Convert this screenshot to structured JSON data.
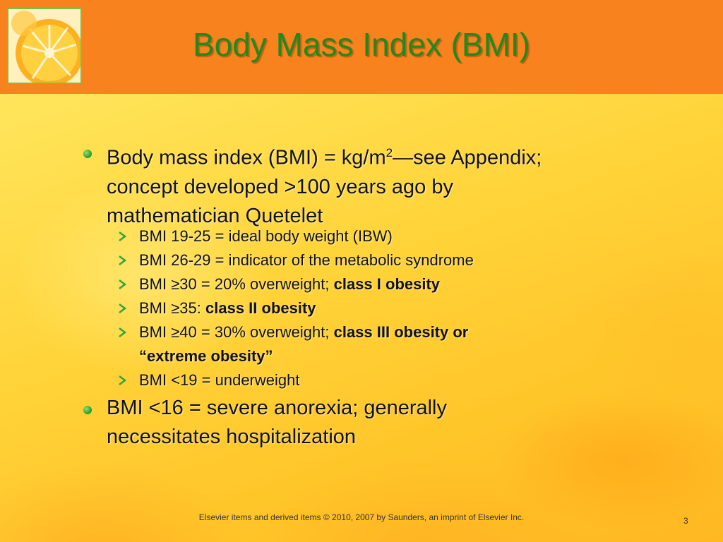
{
  "title": "Body Mass Index (BMI)",
  "colors": {
    "header": "#f7821e",
    "title": "#1f8a1f",
    "bullet": "#2fa53a",
    "background": "#ffd23a"
  },
  "icons": {
    "logo": "orange-slice-icon",
    "level1_bullet": "green-dot-icon",
    "level2_bullet": "arrow-right-icon"
  },
  "bullets": [
    {
      "line1_a": "Body mass index (BMI) = kg/m",
      "line1_sup": "2",
      "line1_b": "—see Appendix;",
      "line2": "concept developed >100 years ago by",
      "line3": "mathematician Quetelet",
      "sub": [
        {
          "text": "BMI 19-25 = ideal body weight (IBW)"
        },
        {
          "text": "BMI 26-29 = indicator of the metabolic syndrome"
        },
        {
          "text": "BMI ≥30 = 20% overweight; ",
          "bold": "class I obesity"
        },
        {
          "text": "BMI ≥35: ",
          "bold": "class II obesity"
        },
        {
          "text": "BMI ≥40 = 30% overweight; ",
          "bold": "class III obesity or",
          "bold2": "“extreme obesity”"
        },
        {
          "text": "BMI <19 = underweight"
        }
      ]
    },
    {
      "line1": "BMI <16 = severe anorexia; generally",
      "line2": "necessitates hospitalization"
    }
  ],
  "footer": "Elsevier items and derived items © 2010, 2007 by Saunders, an imprint of Elsevier Inc.",
  "page_number": "3"
}
